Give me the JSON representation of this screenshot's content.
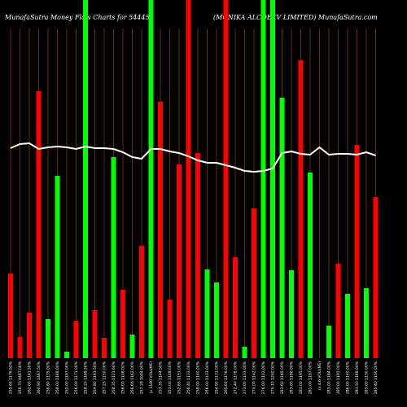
{
  "chart_data": {
    "type": "bar",
    "title": "MunafaSutra  Money Flow  Charts for 544451",
    "subtitle": "(MONIKA ALCOBEV LIMITED) MunafaSutra.com",
    "categories": [
      "255.65 1176.50%",
      "259.70 8487.00%",
      "262.00 1141.50%",
      "260.90 1467.50%",
      "256.60 1135.00%",
      "258.00 1168.00%",
      "259.00 1197.00%",
      "256.00 1171.00%",
      "258.25 1168.50%",
      "259.80 1163.50%",
      "257.25 1150.00%",
      "258.35 1121.60%",
      "256.00 1106.00%",
      "256.65 1162.00%",
      "257.28 1094.00%",
      "(x 1180 VOLUME)",
      "253.35 1144.50%",
      "253.00 1148.00%",
      "252.65 1151.00%",
      "256.40 1133.00%",
      "258.00 1140.00%",
      "256.00 1133.00%",
      "254.90 1131.00%",
      "265.63 1176.00%",
      "272.40 1178.00%",
      "273.00 1133.00%",
      "270.00 1142.00%",
      "276.00 1102.00%",
      "275.10 1200.00%",
      "283.60 1165.00%",
      "283.00 1186.00%",
      "283.00 1195.00%",
      "281.00 1197.00%",
      "(x 4.6 VOLUME)",
      "283.00 1164.00%",
      "285.00 1195.00%",
      "286.00 1140.00%",
      "283.50 1168.00%",
      "285.00 1130.00%",
      "285.40 1150.00%"
    ],
    "series": [
      {
        "name": "Money Flow",
        "colors": [
          "#ff0000",
          "#ff0000",
          "#ff0000",
          "#ff0000",
          "#00ff00",
          "#00ff00",
          "#00ff00",
          "#ff0000",
          "#00ff00",
          "#ff0000",
          "#ff0000",
          "#00ff00",
          "#ff0000",
          "#00ff00",
          "#ff0000",
          "#00ff00",
          "#ff0000",
          "#ff0000",
          "#ff0000",
          "#ff0000",
          "#ff0000",
          "#00ff00",
          "#00ff00",
          "#ff0000",
          "#ff0000",
          "#00ff00",
          "#ff0000",
          "#00ff00",
          "#00ff00",
          "#00ff00",
          "#00ff00",
          "#ff0000",
          "#00ff00",
          "#00ff00",
          "#00ff00",
          "#ff0000",
          "#00ff00",
          "#ff0000",
          "#00ff00",
          "#ff0000"
        ],
        "values": [
          104,
          26,
          56,
          328,
          48,
          224,
          8,
          46,
          440,
          59,
          25,
          247,
          84,
          29,
          138,
          440,
          315,
          72,
          238,
          440,
          252,
          109,
          93,
          440,
          124,
          14,
          184,
          440,
          440,
          320,
          108,
          366,
          228,
          0,
          40,
          116,
          79,
          262,
          86,
          198
        ]
      },
      {
        "name": "Price",
        "color": "#ffffff",
        "values": [
          258,
          263,
          264,
          257,
          259,
          260,
          259,
          257,
          260,
          258,
          258,
          257,
          253,
          247,
          245,
          257,
          257,
          254,
          252,
          248,
          243,
          240,
          240,
          237,
          234,
          230,
          229,
          230,
          233,
          252,
          254,
          251,
          250,
          259,
          250,
          251,
          251,
          250,
          253,
          249
        ]
      }
    ],
    "ylim": [
      0,
      440
    ]
  }
}
